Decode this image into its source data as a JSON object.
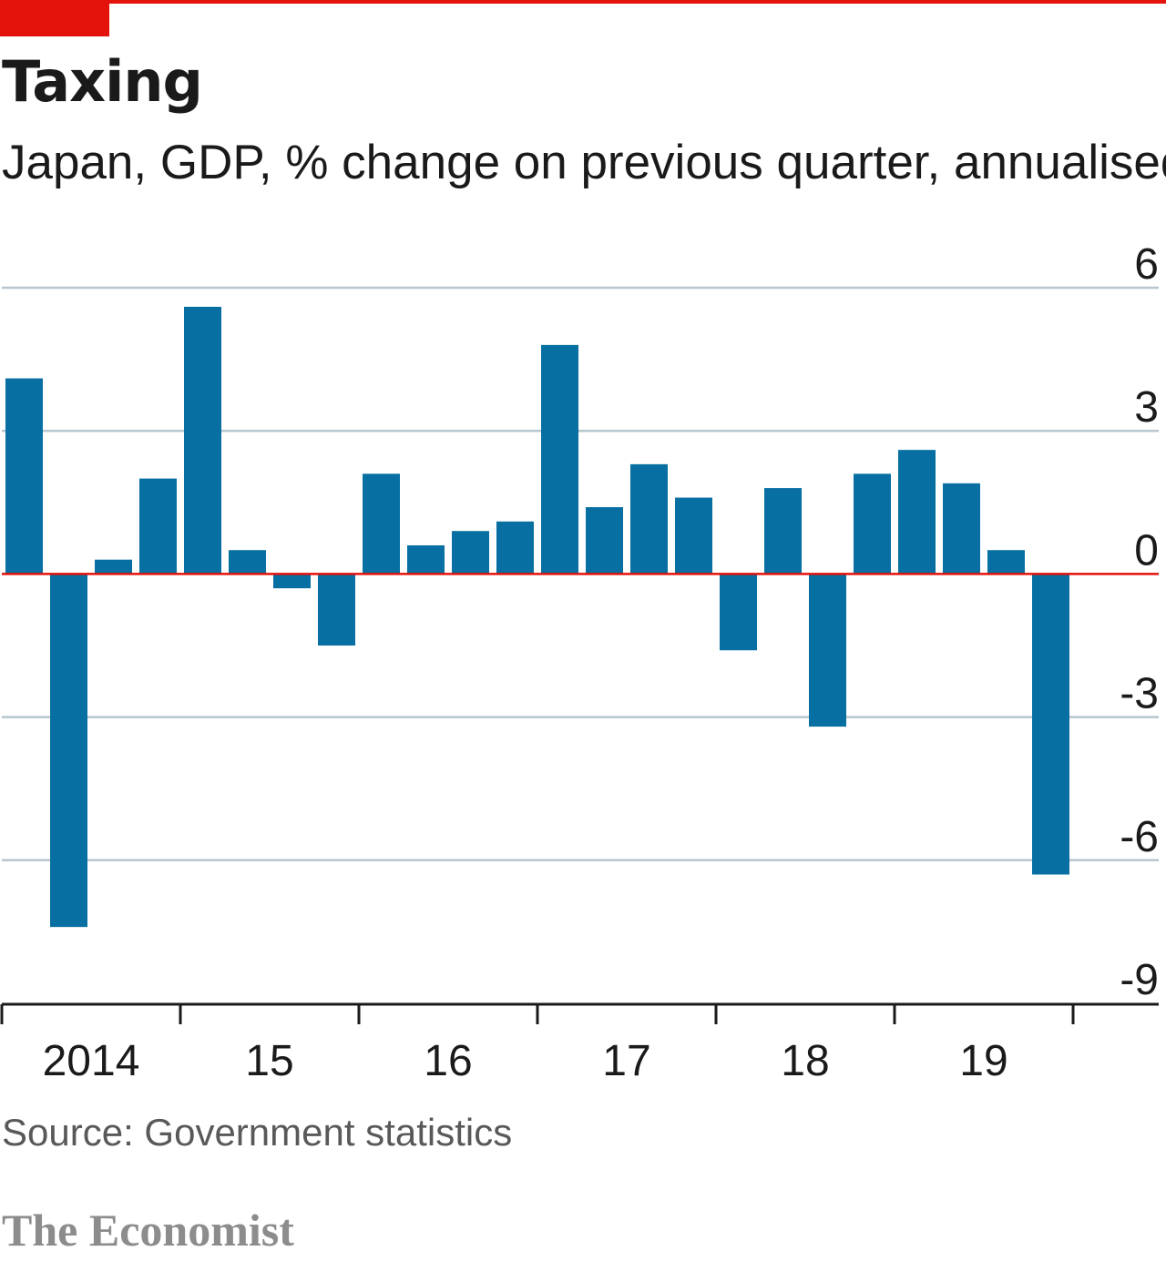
{
  "header": {
    "title": "Taxing",
    "subtitle": "Japan, GDP, % change on previous quarter, annualised"
  },
  "footer": {
    "source": "Source: Government statistics",
    "brand": "The Economist"
  },
  "colors": {
    "accent": "#e3120b",
    "bar": "#076fa2",
    "grid": "#b7c6cf",
    "zero_line": "#e3120b"
  },
  "chart_data": {
    "type": "bar",
    "x": [
      "2014 Q1",
      "2014 Q2",
      "2014 Q3",
      "2014 Q4",
      "2015 Q1",
      "2015 Q2",
      "2015 Q3",
      "2015 Q4",
      "2016 Q1",
      "2016 Q2",
      "2016 Q3",
      "2016 Q4",
      "2017 Q1",
      "2017 Q2",
      "2017 Q3",
      "2017 Q4",
      "2018 Q1",
      "2018 Q2",
      "2018 Q3",
      "2018 Q4",
      "2019 Q1",
      "2019 Q2",
      "2019 Q3",
      "2019 Q4"
    ],
    "values": [
      4.1,
      -7.4,
      0.3,
      2.0,
      5.6,
      0.5,
      -0.3,
      -1.5,
      2.1,
      0.6,
      0.9,
      1.1,
      4.8,
      1.4,
      2.3,
      1.6,
      -1.6,
      1.8,
      -3.2,
      2.1,
      2.6,
      1.9,
      0.5,
      -6.3
    ],
    "ylim": [
      -9,
      6
    ],
    "yticks": [
      6,
      3,
      0,
      -3,
      -6,
      -9
    ],
    "ytick_labels": [
      "6",
      "3",
      "0",
      "-3",
      "-6",
      "-9"
    ],
    "xtick_labels": [
      "2014",
      "15",
      "16",
      "17",
      "18",
      "19"
    ],
    "grid": true,
    "ylabel_position": "right"
  }
}
